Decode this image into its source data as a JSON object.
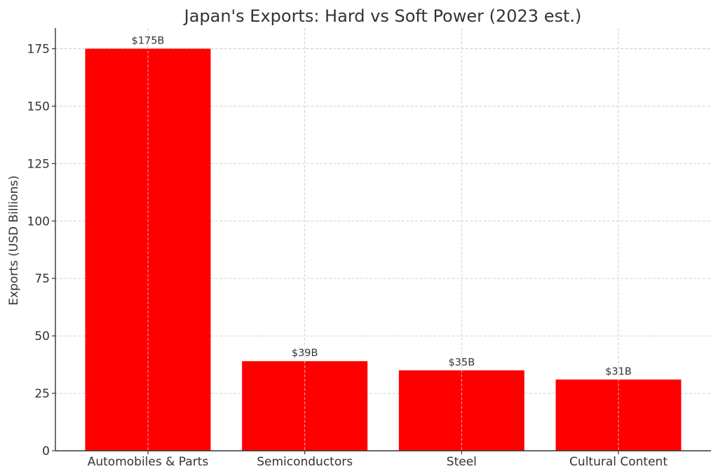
{
  "chart_data": {
    "type": "bar",
    "title": "Japan's Exports: Hard vs Soft Power (2023 est.)",
    "xlabel": "",
    "ylabel": "Exports (USD Billions)",
    "categories": [
      "Automobiles & Parts",
      "Semiconductors",
      "Steel",
      "Cultural Content"
    ],
    "values": [
      175,
      39,
      35,
      31
    ],
    "data_labels": [
      "$175B",
      "$39B",
      "$35B",
      "$31B"
    ],
    "ylim": [
      0,
      184
    ],
    "yticks": [
      0,
      25,
      50,
      75,
      100,
      125,
      150,
      175
    ],
    "grid": true,
    "grid_style": "dashed",
    "legend": null,
    "colors": {
      "bar": "#ff0000",
      "grid": "#cccccc",
      "text": "#333333",
      "axis": "#333333"
    }
  }
}
